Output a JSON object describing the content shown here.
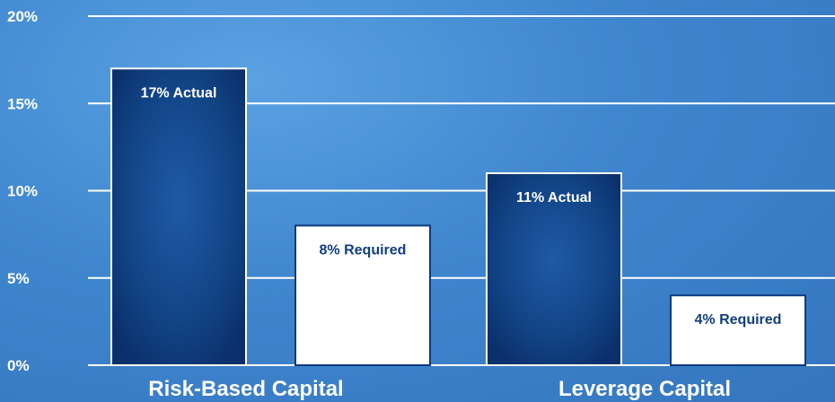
{
  "chart_data": {
    "type": "bar",
    "categories": [
      "Risk-Based Capital",
      "Leverage Capital"
    ],
    "series": [
      {
        "values": [
          17,
          11
        ],
        "labels": [
          "17% Actual",
          "11% Actual"
        ],
        "color": "#0d3a7e"
      },
      {
        "values": [
          8,
          4
        ],
        "labels": [
          "8% Required",
          "4% Required"
        ],
        "color": "#ffffff"
      }
    ],
    "yticks": [
      "0%",
      "5%",
      "10%",
      "15%",
      "20%"
    ],
    "ytick_values": [
      0,
      5,
      10,
      15,
      20
    ],
    "ylim": [
      0,
      20
    ],
    "grid": true,
    "legend": "none",
    "colors": {
      "background": "#3f86cf",
      "actual_bar": "#0d3a7e",
      "required_bar": "#ffffff",
      "actual_label": "#ffffff",
      "required_label": "#123f80",
      "grid": "#ffffff"
    }
  }
}
